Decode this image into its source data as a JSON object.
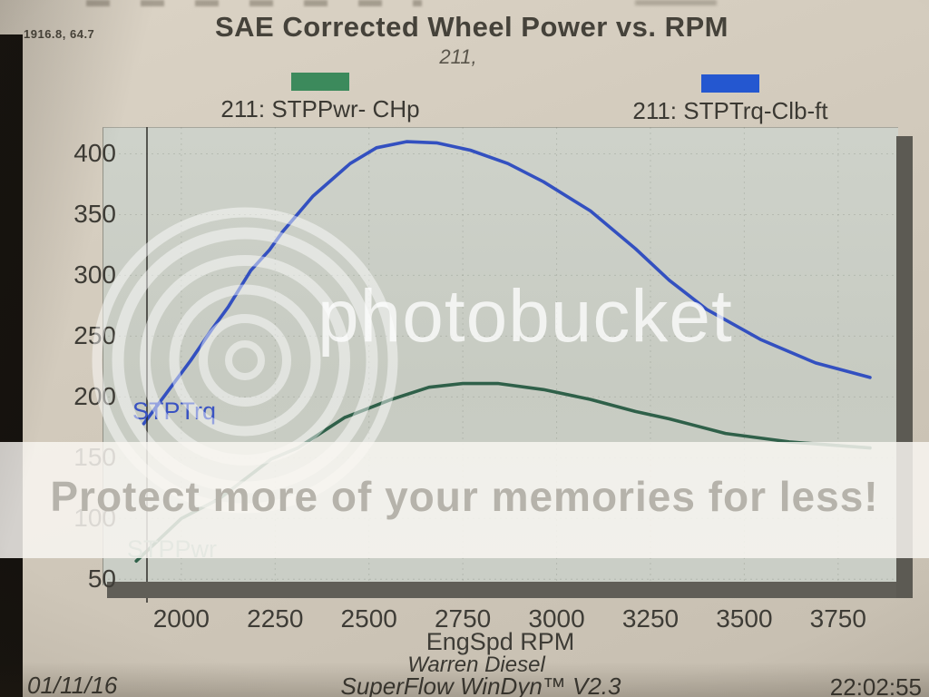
{
  "window": {
    "cursor_readout": "1916.8, 64.7"
  },
  "header": {
    "title": "SAE Corrected Wheel Power vs. RPM",
    "subtitle": "211,"
  },
  "legend": [
    {
      "label": "211: STPPwr- CHp",
      "color": "#3c8a5c"
    },
    {
      "label": "211: STPTrq-Clb-ft",
      "color": "#2457d0"
    }
  ],
  "curve_labels": {
    "torque": "STPTrq",
    "power": "STPPwr"
  },
  "chart_data": {
    "type": "line",
    "title": "SAE Corrected Wheel Power vs. RPM",
    "subtitle": "211,",
    "xlabel": "EngSpd RPM",
    "ylabel": "",
    "xlim": [
      1790,
      3910
    ],
    "ylim": [
      45,
      422
    ],
    "x_ticks": [
      2000,
      2250,
      2500,
      2750,
      3000,
      3250,
      3500,
      3750
    ],
    "y_ticks": [
      50,
      100,
      150,
      200,
      250,
      300,
      350,
      400
    ],
    "grid": true,
    "legend_position": "top",
    "series": [
      {
        "name": "211: STPTrq-Clb-ft",
        "unit": "lb-ft",
        "color": "#3350c0",
        "x": [
          1900,
          1960,
          2025,
          2080,
          2125,
          2185,
          2235,
          2270,
          2350,
          2450,
          2520,
          2600,
          2680,
          2770,
          2870,
          2965,
          3090,
          3210,
          3300,
          3400,
          3545,
          3690,
          3835
        ],
        "y": [
          178,
          203,
          230,
          255,
          274,
          304,
          321,
          336,
          365,
          392,
          405,
          410,
          409,
          403,
          392,
          377,
          353,
          322,
          296,
          272,
          247,
          228,
          216
        ]
      },
      {
        "name": "211: STPPwr- CHp",
        "unit": "hp",
        "color": "#2f6049",
        "x": [
          1880,
          2000,
          2100,
          2240,
          2310,
          2435,
          2560,
          2660,
          2750,
          2845,
          2965,
          3090,
          3210,
          3300,
          3450,
          3620,
          3835
        ],
        "y": [
          65,
          100,
          116,
          149,
          158,
          183,
          198,
          208,
          211,
          211,
          206,
          198,
          188,
          182,
          170,
          163,
          158
        ]
      }
    ]
  },
  "footer": {
    "dyno_shop": "Warren Diesel",
    "software": "SuperFlow WinDyn™ V2.3",
    "date": "01/11/16",
    "time": "22:02:55"
  },
  "watermark": {
    "brand": "photobucket",
    "banner": "Protect more of your memories for less!"
  }
}
